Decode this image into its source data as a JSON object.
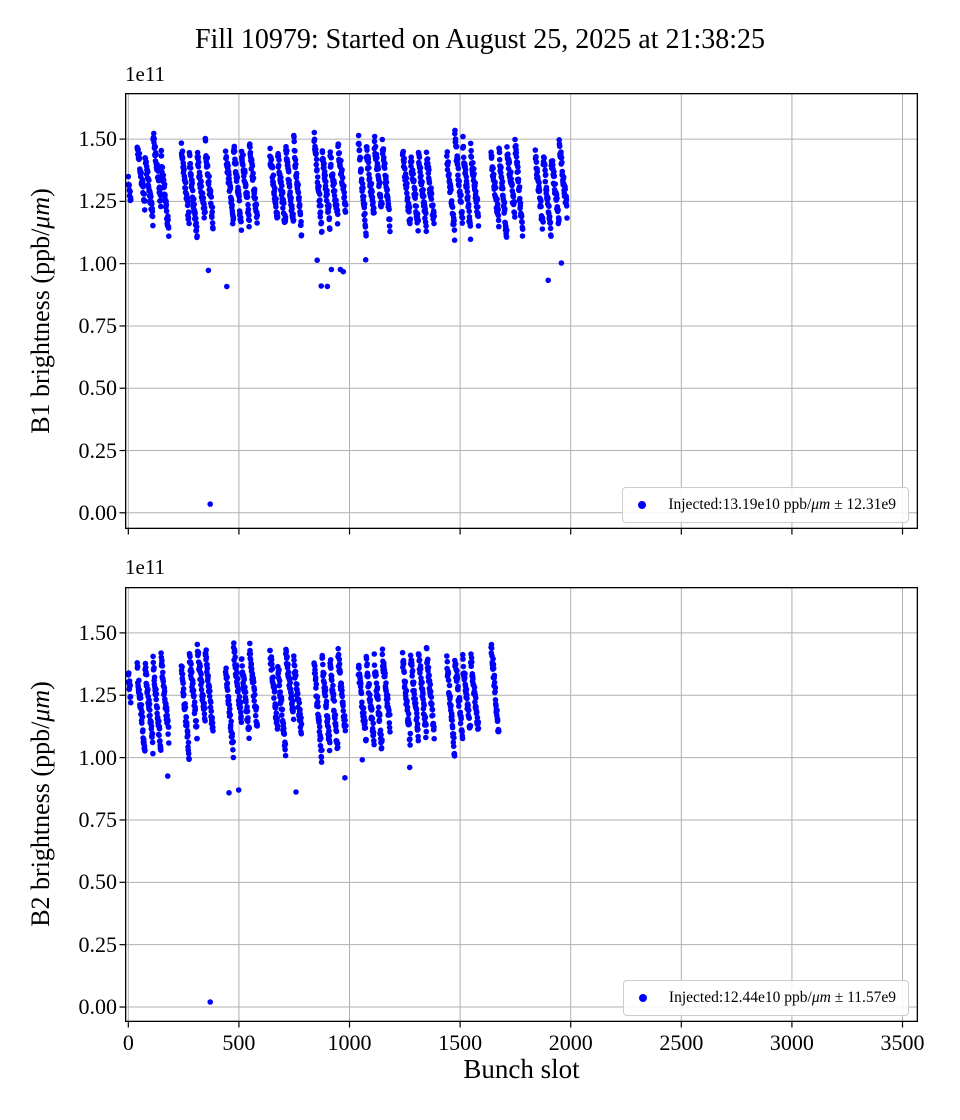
{
  "figure": {
    "title": "Fill 10979: Started on August 25, 2025 at 21:38:25",
    "xlabel": "Bunch slot",
    "background": "#ffffff",
    "grid_color": "#b0b0b0",
    "spine_color": "#000000",
    "marker_color": "#0000ff"
  },
  "chart_data": [
    {
      "type": "scatter",
      "name": "B1 brightness vs bunch slot",
      "offset_text": "1e11",
      "ylabel_parts": {
        "prefix": "B1 brightness (ppb/",
        "italic": "μm",
        "suffix": ")"
      },
      "xlabel": "Bunch slot",
      "marker_color": "#0000ff",
      "grid": true,
      "xlim": [
        -15,
        3570
      ],
      "ylim": [
        -0.065,
        1.685
      ],
      "xticks": [
        0,
        500,
        1000,
        1500,
        2000,
        2500,
        3000,
        3500
      ],
      "xtick_labels": [
        "0",
        "500",
        "1000",
        "1500",
        "2000",
        "2500",
        "3000",
        "3500"
      ],
      "show_xtick_labels": false,
      "yticks": [
        0,
        0.25,
        0.5,
        0.75,
        1.0,
        1.25,
        1.5
      ],
      "ytick_labels": [
        "0.00",
        "0.25",
        "0.50",
        "0.75",
        "1.00",
        "1.25",
        "1.50"
      ],
      "legend": {
        "position": "lower right",
        "prefix": "Injected:13.19e10 ppb/",
        "italic": "μm",
        "suffix": " ± 12.31e9"
      },
      "injected_mean": "13.19e10",
      "injected_sigma": "12.31e9",
      "units_exponent": "1e11",
      "trains": [
        {
          "start": 0,
          "n": 12,
          "base": 1.36,
          "slope": 0.24
        },
        {
          "start": 40,
          "n": 144,
          "base": 1.47,
          "slope": 0.3
        },
        {
          "start": 240,
          "n": 144,
          "base": 1.47,
          "slope": 0.3
        },
        {
          "start": 440,
          "n": 144,
          "base": 1.47,
          "slope": 0.3
        },
        {
          "start": 640,
          "n": 144,
          "base": 1.47,
          "slope": 0.3
        },
        {
          "start": 840,
          "n": 144,
          "base": 1.47,
          "slope": 0.3
        },
        {
          "start": 1040,
          "n": 144,
          "base": 1.47,
          "slope": 0.3
        },
        {
          "start": 1240,
          "n": 144,
          "base": 1.47,
          "slope": 0.3
        },
        {
          "start": 1440,
          "n": 144,
          "base": 1.47,
          "slope": 0.3
        },
        {
          "start": 1640,
          "n": 144,
          "base": 1.47,
          "slope": 0.3
        },
        {
          "start": 1840,
          "n": 144,
          "base": 1.47,
          "slope": 0.3
        }
      ],
      "subtrain_size": 36,
      "base_jitter": 0.05,
      "noise": 0.034,
      "outliers": {
        "rate": 0.008,
        "lo": 0.9,
        "hi": 1.04
      },
      "special_points": [
        {
          "x": 370,
          "y": 0.035
        }
      ]
    },
    {
      "type": "scatter",
      "name": "B2 brightness vs bunch slot",
      "offset_text": "1e11",
      "ylabel_parts": {
        "prefix": "B2 brightness (ppb/",
        "italic": "μm",
        "suffix": ")"
      },
      "xlabel": "Bunch slot",
      "marker_color": "#0000ff",
      "grid": true,
      "xlim": [
        -15,
        3570
      ],
      "ylim": [
        -0.06,
        1.684
      ],
      "xticks": [
        0,
        500,
        1000,
        1500,
        2000,
        2500,
        3000,
        3500
      ],
      "xtick_labels": [
        "0",
        "500",
        "1000",
        "1500",
        "2000",
        "2500",
        "3000",
        "3500"
      ],
      "show_xtick_labels": true,
      "yticks": [
        0,
        0.25,
        0.5,
        0.75,
        1.0,
        1.25,
        1.5
      ],
      "ytick_labels": [
        "0.00",
        "0.25",
        "0.50",
        "0.75",
        "1.00",
        "1.25",
        "1.50"
      ],
      "legend": {
        "position": "lower right",
        "prefix": "Injected:12.44e10 ppb/",
        "italic": "μm",
        "suffix": " ± 11.57e9"
      },
      "injected_mean": "12.44e10",
      "injected_sigma": "11.57e9",
      "units_exponent": "1e11",
      "trains": [
        {
          "start": 0,
          "n": 12,
          "base": 1.28,
          "slope": 0.22
        },
        {
          "start": 40,
          "n": 144,
          "base": 1.4,
          "slope": 0.32
        },
        {
          "start": 240,
          "n": 144,
          "base": 1.4,
          "slope": 0.32
        },
        {
          "start": 440,
          "n": 144,
          "base": 1.4,
          "slope": 0.32
        },
        {
          "start": 640,
          "n": 144,
          "base": 1.4,
          "slope": 0.32
        },
        {
          "start": 840,
          "n": 144,
          "base": 1.4,
          "slope": 0.32
        },
        {
          "start": 1040,
          "n": 144,
          "base": 1.4,
          "slope": 0.32
        },
        {
          "start": 1240,
          "n": 144,
          "base": 1.4,
          "slope": 0.32
        },
        {
          "start": 1440,
          "n": 144,
          "base": 1.4,
          "slope": 0.32
        },
        {
          "start": 1640,
          "n": 36,
          "base": 1.5,
          "slope": 0.38
        }
      ],
      "subtrain_size": 36,
      "base_jitter": 0.05,
      "noise": 0.034,
      "outliers": {
        "rate": 0.01,
        "lo": 0.85,
        "hi": 1.02
      },
      "special_points": [
        {
          "x": 370,
          "y": 0.02
        }
      ]
    }
  ]
}
